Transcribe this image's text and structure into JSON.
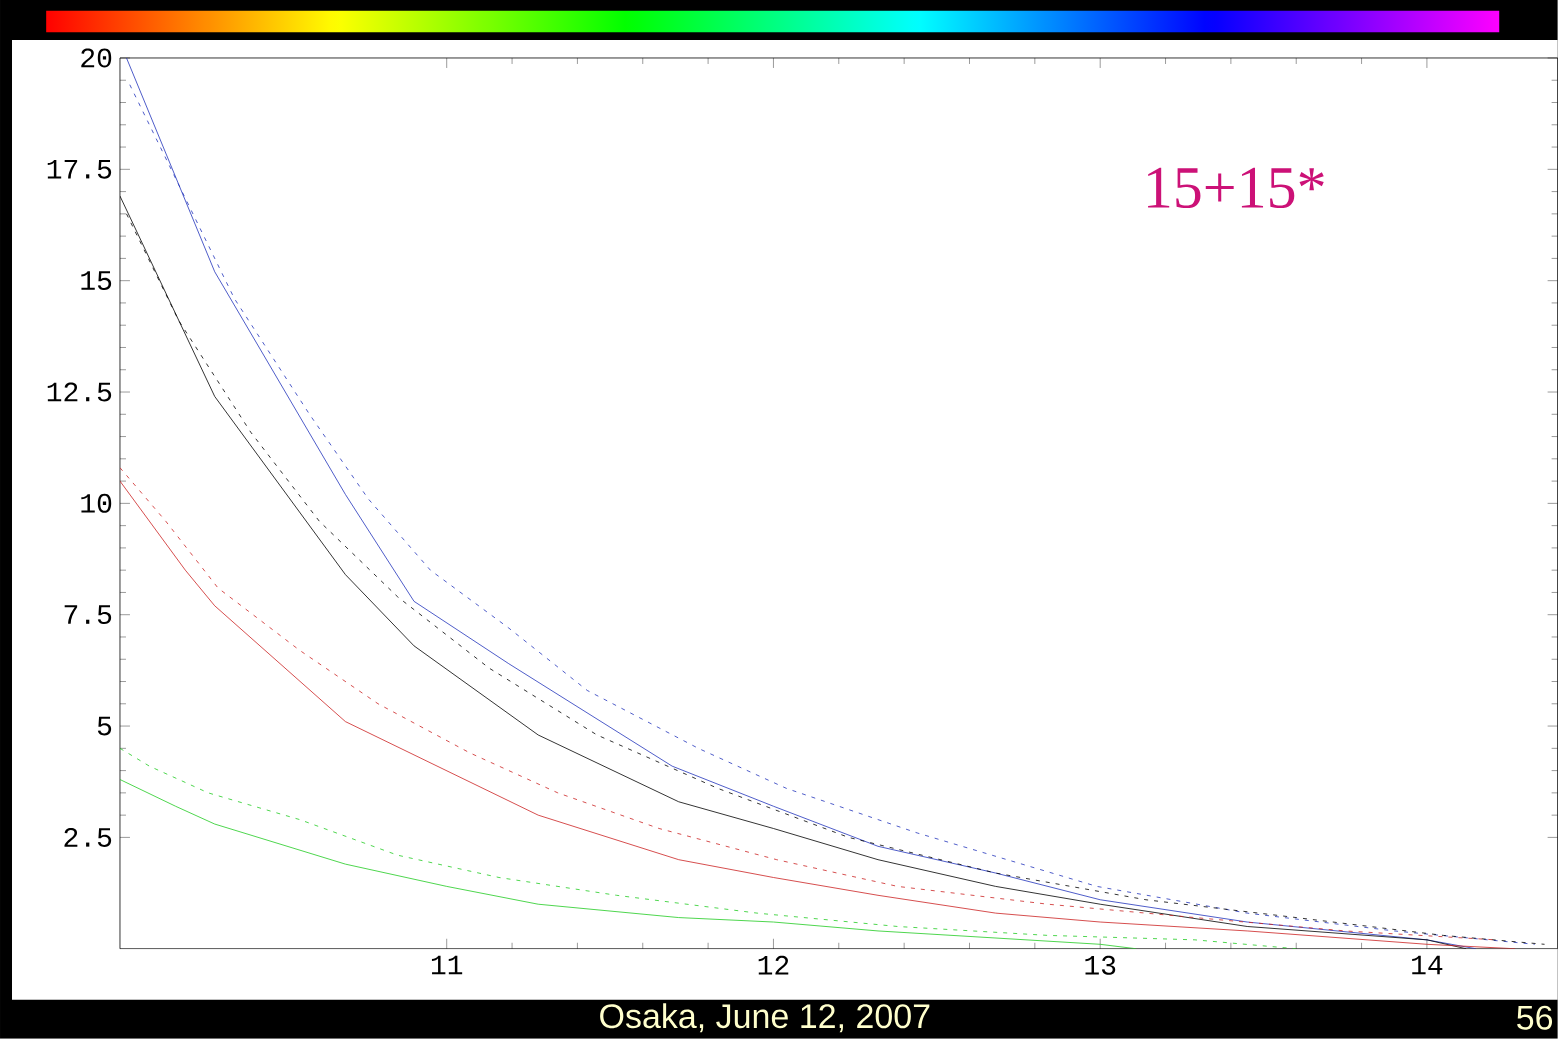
{
  "chart_data": {
    "type": "line",
    "xlim": [
      10,
      14.4
    ],
    "ylim": [
      0,
      20
    ],
    "xticks": [
      11,
      12,
      13,
      14
    ],
    "yticks": [
      2.5,
      5,
      7.5,
      10,
      12.5,
      15,
      17.5,
      20
    ],
    "grid": false,
    "annotations": [
      "15+15*",
      "Osaka, June 12, 2007",
      "56"
    ],
    "series": [
      {
        "color": "#2233bb",
        "line_style": "solid",
        "x": [
          10.02,
          10.29,
          10.69,
          10.9,
          11.19,
          11.69,
          12.0,
          12.32,
          12.68,
          13.0,
          13.45,
          14.0,
          14.15
        ],
        "values": [
          20.0,
          15.2,
          10.2,
          7.8,
          6.4,
          4.1,
          3.2,
          2.3,
          1.7,
          1.1,
          0.6,
          0.2,
          0
        ]
      },
      {
        "color": "#000000",
        "line_style": "solid",
        "x": [
          10.0,
          10.29,
          10.69,
          10.9,
          11.28,
          11.71,
          12.0,
          12.32,
          12.68,
          13.0,
          13.45,
          14.0,
          14.12
        ],
        "values": [
          16.9,
          12.4,
          8.4,
          6.8,
          4.8,
          3.3,
          2.7,
          2.0,
          1.4,
          1.0,
          0.5,
          0.2,
          0
        ]
      },
      {
        "color": "#cc2222",
        "line_style": "solid",
        "x": [
          10.0,
          10.2,
          10.29,
          10.69,
          11.28,
          11.71,
          12.0,
          12.32,
          12.68,
          13.0,
          13.45,
          14.0,
          14.27
        ],
        "values": [
          10.5,
          8.5,
          7.7,
          5.1,
          3.0,
          2.0,
          1.6,
          1.2,
          0.8,
          0.6,
          0.4,
          0.1,
          0
        ]
      },
      {
        "color": "#22cc22",
        "line_style": "solid",
        "x": [
          10.0,
          10.17,
          10.29,
          10.69,
          11.0,
          11.28,
          11.71,
          12.0,
          12.32,
          13.0,
          13.11
        ],
        "values": [
          3.8,
          3.2,
          2.8,
          1.9,
          1.4,
          1.0,
          0.7,
          0.6,
          0.4,
          0.1,
          0
        ]
      },
      {
        "color": "#2233bb",
        "line_style": "dotted",
        "x": [
          10.03,
          10.17,
          10.35,
          10.58,
          10.76,
          10.95,
          11.19,
          11.43,
          11.77,
          12.04,
          12.44,
          12.99,
          13.45,
          13.9,
          14.33
        ],
        "values": [
          19.4,
          17.3,
          14.6,
          12.0,
          10.1,
          8.5,
          7.2,
          5.8,
          4.5,
          3.6,
          2.6,
          1.4,
          0.8,
          0.4,
          0.1
        ]
      },
      {
        "color": "#000000",
        "line_style": "dotted",
        "x": [
          10.02,
          10.18,
          10.4,
          10.61,
          10.85,
          11.13,
          11.46,
          11.83,
          12.23,
          12.68,
          13.14,
          13.6,
          14.05,
          14.36
        ],
        "values": [
          16.5,
          14.1,
          11.6,
          9.6,
          7.9,
          6.3,
          4.8,
          3.6,
          2.5,
          1.7,
          1.1,
          0.7,
          0.3,
          0.1
        ]
      },
      {
        "color": "#cc2222",
        "line_style": "dotted",
        "x": [
          10.0,
          10.14,
          10.3,
          10.55,
          10.79,
          11.07,
          11.34,
          11.65,
          12.01,
          12.38,
          12.84,
          13.29,
          13.75,
          14.21
        ],
        "values": [
          10.8,
          9.6,
          8.1,
          6.7,
          5.5,
          4.4,
          3.5,
          2.7,
          2.0,
          1.4,
          1.0,
          0.7,
          0.4,
          0.2
        ]
      },
      {
        "color": "#22cc22",
        "line_style": "dotted",
        "x": [
          10.0,
          10.09,
          10.27,
          10.55,
          10.85,
          11.16,
          11.52,
          11.95,
          12.38,
          12.84,
          13.29,
          13.6
        ],
        "values": [
          4.5,
          4.1,
          3.5,
          2.9,
          2.1,
          1.6,
          1.2,
          0.8,
          0.5,
          0.3,
          0.2,
          0.0
        ]
      }
    ]
  }
}
